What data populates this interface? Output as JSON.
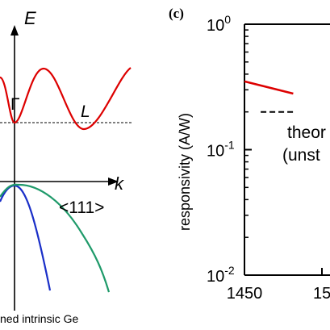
{
  "chart_data": [
    {
      "type": "line",
      "name": "band-diagram",
      "xlabel": "k",
      "ylabel": "E",
      "labels": {
        "gamma": "Γ",
        "L": "L",
        "direction": "<111>",
        "caption": "ned intrinsic Ge"
      },
      "colors": {
        "conduction": "#dd0000",
        "heavy_hole": "#1a2fc8",
        "light_hole": "#1f9a6a",
        "reference": "#000000"
      },
      "series": []
    },
    {
      "type": "line",
      "panel_label": "(c)",
      "xlabel": "",
      "ylabel": "responsivity (A/W)",
      "yscale": "log",
      "ylim": [
        0.01,
        1
      ],
      "xlim": [
        1450,
        1550
      ],
      "x_ticks": [
        "1450",
        "15"
      ],
      "y_ticks": [
        {
          "value": 1,
          "base": "10",
          "exp": "0"
        },
        {
          "value": 0.1,
          "base": "10",
          "exp": "-1"
        },
        {
          "value": 0.01,
          "base": "10",
          "exp": "-2"
        }
      ],
      "annotation_lines": [
        "theor",
        "(unst"
      ],
      "series": [
        {
          "style": "solid",
          "color": "#dd0000",
          "x": [
            1450,
            1480
          ],
          "y": [
            0.35,
            0.28
          ]
        },
        {
          "style": "dashed",
          "color": "#000000",
          "x": [
            1460,
            1480
          ],
          "y": [
            0.2,
            0.2
          ]
        }
      ]
    }
  ]
}
